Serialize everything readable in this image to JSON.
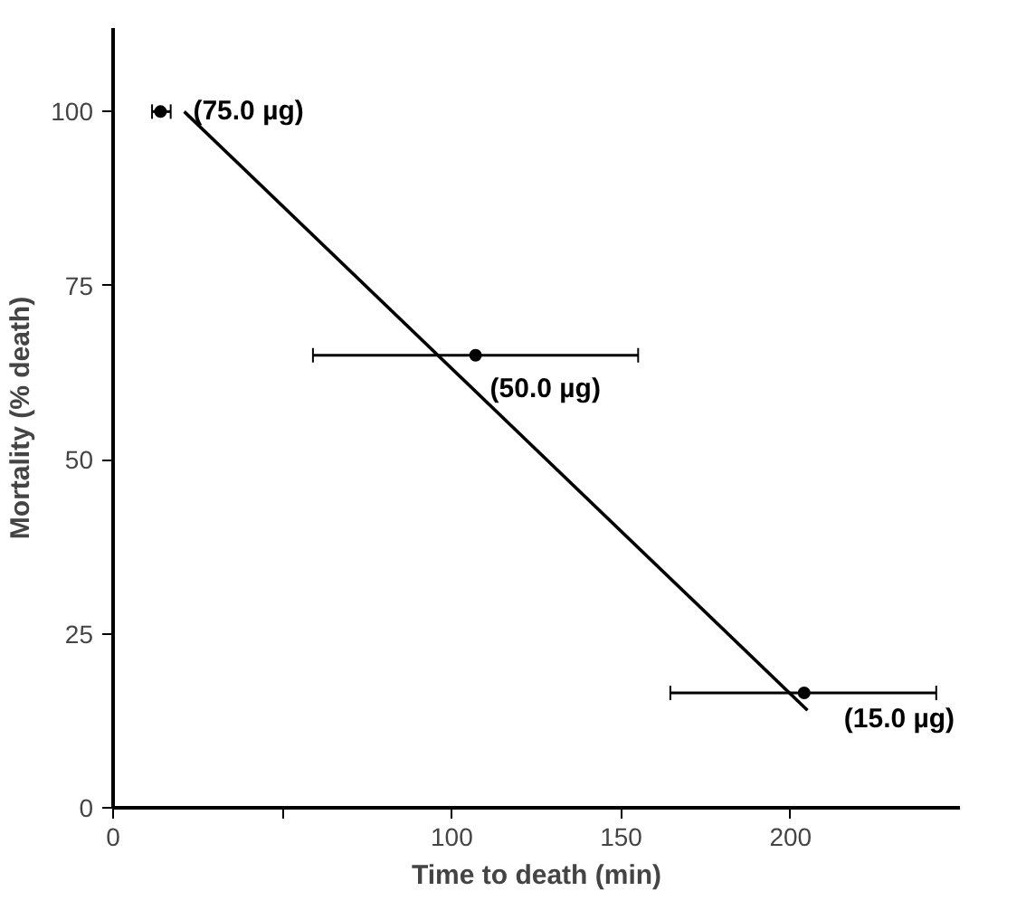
{
  "chart_data": {
    "type": "scatter",
    "xlabel": "Time to death (min)",
    "ylabel": "Mortality (% death)",
    "xlim": [
      0,
      250
    ],
    "ylim": [
      0,
      112
    ],
    "xticks": [
      0,
      {
        "value": 50,
        "label": null
      },
      100,
      150,
      200
    ],
    "yticks": [
      0,
      25,
      50,
      75,
      100
    ],
    "grid": false,
    "marker": "circle",
    "series": [
      {
        "color": "#000000",
        "x": [
          14,
          107,
          204
        ],
        "values": [
          100,
          65,
          16.5
        ],
        "xerrors": [
          [
            11.5,
            17
          ],
          [
            59,
            155
          ],
          [
            164.5,
            243
          ]
        ]
      },
      {
        "type": "line",
        "color": "#000000",
        "x": [
          21,
          205
        ],
        "values": [
          100,
          14
        ],
        "line_style": "solid",
        "marker": "none"
      }
    ],
    "annotations": [
      {
        "text": "(75.0 µg)",
        "x": 14,
        "y": 100
      },
      {
        "text": "(50.0 µg)",
        "x": 107,
        "y": 65
      },
      {
        "text": "(15.0 µg)",
        "x": 204,
        "y": 16.5
      }
    ]
  }
}
